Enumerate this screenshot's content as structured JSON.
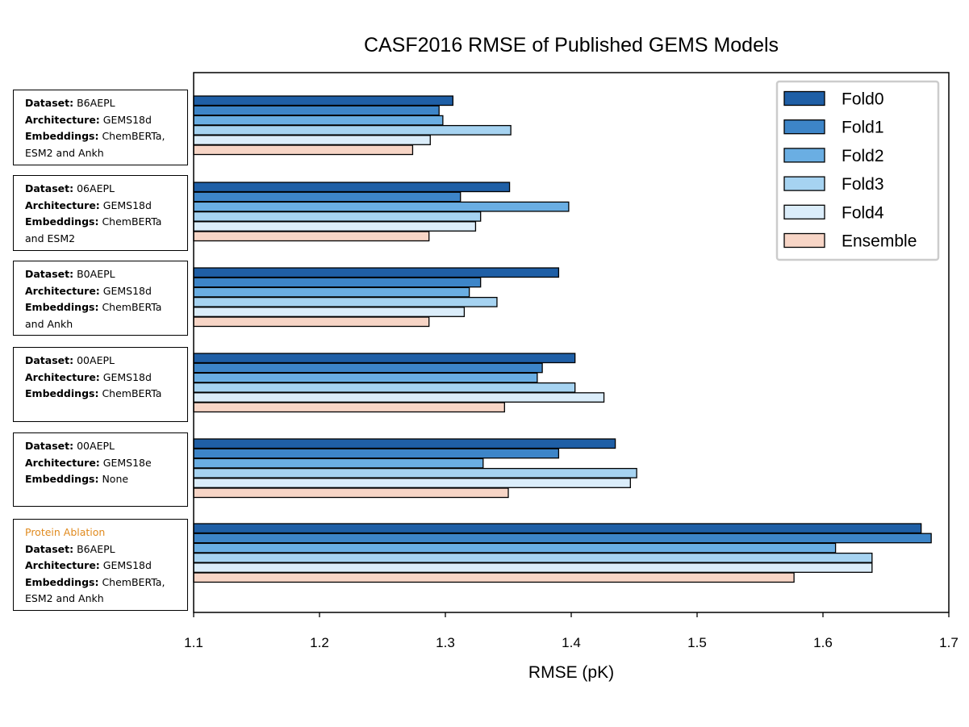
{
  "chart_data": {
    "type": "bar",
    "orientation": "horizontal",
    "title": "CASF2016 RMSE of Published GEMS Models",
    "xlabel": "RMSE (pK)",
    "ylabel": "",
    "xlim": [
      1.1,
      1.7
    ],
    "xticks": [
      "1.1",
      "1.2",
      "1.3",
      "1.4",
      "1.5",
      "1.6",
      "1.7"
    ],
    "grid": false,
    "legend_position": "top-right",
    "series": [
      {
        "name": "Fold0",
        "color": "#1f5fa6",
        "values": [
          1.306,
          1.351,
          1.39,
          1.403,
          1.435,
          1.678
        ]
      },
      {
        "name": "Fold1",
        "color": "#3d85c8",
        "values": [
          1.295,
          1.312,
          1.328,
          1.377,
          1.39,
          1.686
        ]
      },
      {
        "name": "Fold2",
        "color": "#6aaee3",
        "values": [
          1.298,
          1.398,
          1.319,
          1.373,
          1.33,
          1.61
        ]
      },
      {
        "name": "Fold3",
        "color": "#a6d3f1",
        "values": [
          1.352,
          1.328,
          1.341,
          1.403,
          1.452,
          1.639
        ]
      },
      {
        "name": "Fold4",
        "color": "#dbedfa",
        "values": [
          1.288,
          1.324,
          1.315,
          1.426,
          1.447,
          1.639
        ]
      },
      {
        "name": "Ensemble",
        "color": "#f7d5c6",
        "values": [
          1.274,
          1.287,
          1.287,
          1.347,
          1.35,
          1.577
        ]
      }
    ],
    "groups": [
      {
        "note": "",
        "lines": [
          {
            "key": "Dataset:",
            "value": "B6AEPL"
          },
          {
            "key": "Architecture:",
            "value": "GEMS18d"
          },
          {
            "key": "Embeddings:",
            "value": "ChemBERTa,"
          },
          {
            "key": "",
            "value": "ESM2 and Ankh"
          }
        ]
      },
      {
        "note": "",
        "lines": [
          {
            "key": "Dataset:",
            "value": "06AEPL"
          },
          {
            "key": "Architecture:",
            "value": "GEMS18d"
          },
          {
            "key": "Embeddings:",
            "value": "ChemBERTa"
          },
          {
            "key": "",
            "value": "and ESM2"
          }
        ]
      },
      {
        "note": "",
        "lines": [
          {
            "key": "Dataset:",
            "value": "B0AEPL"
          },
          {
            "key": "Architecture:",
            "value": "GEMS18d"
          },
          {
            "key": "Embeddings:",
            "value": "ChemBERTa"
          },
          {
            "key": "",
            "value": "and Ankh"
          }
        ]
      },
      {
        "note": "",
        "lines": [
          {
            "key": "Dataset:",
            "value": "00AEPL"
          },
          {
            "key": "Architecture:",
            "value": "GEMS18d"
          },
          {
            "key": "Embeddings:",
            "value": "ChemBERTa"
          }
        ]
      },
      {
        "note": "",
        "lines": [
          {
            "key": "Dataset:",
            "value": "00AEPL"
          },
          {
            "key": "Architecture:",
            "value": "GEMS18e"
          },
          {
            "key": "Embeddings:",
            "value": "None"
          }
        ]
      },
      {
        "note": "Protein Ablation",
        "lines": [
          {
            "key": "Dataset:",
            "value": "B6AEPL"
          },
          {
            "key": "Architecture:",
            "value": "GEMS18d"
          },
          {
            "key": "Embeddings:",
            "value": "ChemBERTa,"
          },
          {
            "key": "",
            "value": "ESM2 and Ankh"
          }
        ]
      }
    ]
  }
}
